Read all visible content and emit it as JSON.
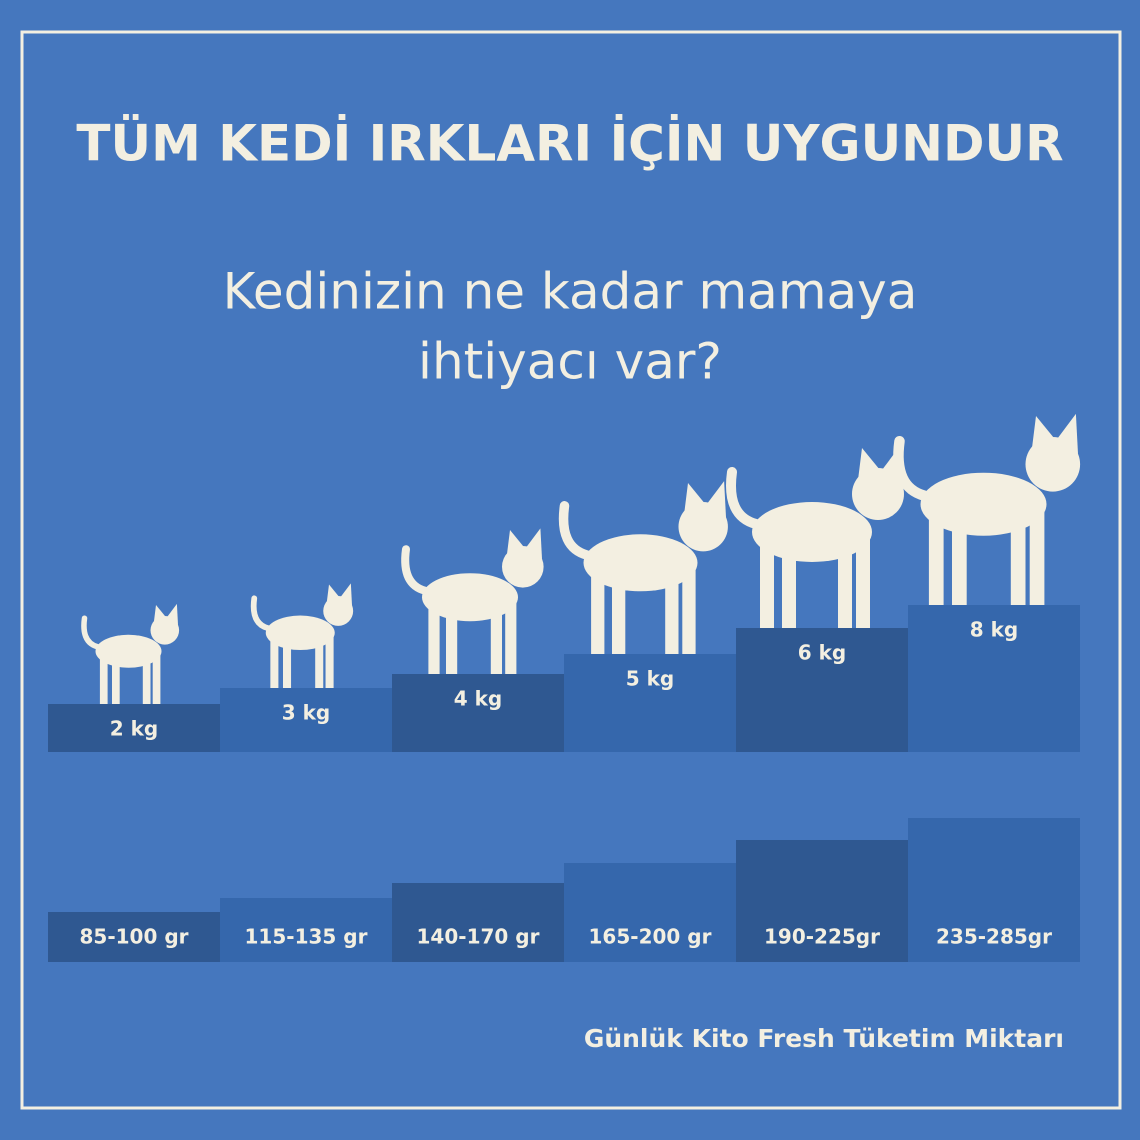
{
  "title": "TÜM KEDİ IRKLARI İÇİN UYGUNDUR",
  "subtitle": [
    "Kedinizin ne kadar mamaya",
    "ihtiyacı var?"
  ],
  "weights": [
    "2 kg",
    "3 kg",
    "4 kg",
    "5 kg",
    "6 kg",
    "8 kg"
  ],
  "portions": [
    "85-100 gr",
    "115-135 gr",
    "140-170 gr",
    "165-200 gr",
    "190-225gr",
    "235-285gr"
  ],
  "footer": "Günlük Kito Fresh Tüketim Miktarı"
}
